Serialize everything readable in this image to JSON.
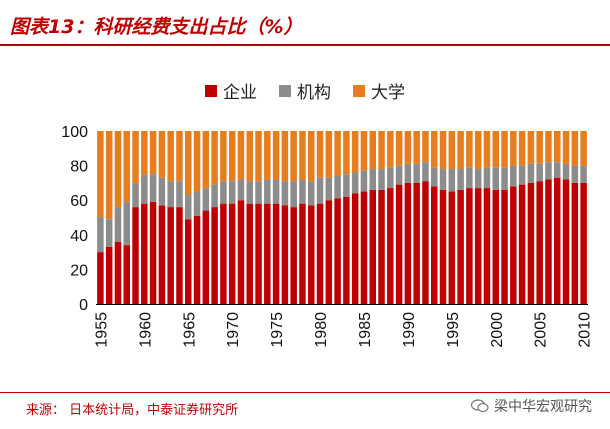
{
  "title": "图表13：科研经费支出占比（%）",
  "source": "来源：   日本统计局，中泰证券研究所",
  "watermark": "梁中华宏观研究",
  "colors": {
    "accent": "#c00000",
    "company": "#c00000",
    "institution": "#8c8c8c",
    "university": "#e87d1e"
  },
  "chart_data": {
    "type": "bar",
    "stacked": true,
    "title": "科研经费支出占比（%）",
    "ylim": [
      0,
      100
    ],
    "yticks": [
      0,
      20,
      40,
      60,
      80,
      100
    ],
    "xtick_labels": [
      "1955",
      "1960",
      "1965",
      "1970",
      "1975",
      "1980",
      "1985",
      "1990",
      "1995",
      "2000",
      "2005",
      "2010"
    ],
    "categories": [
      1955,
      1956,
      1957,
      1958,
      1959,
      1960,
      1961,
      1962,
      1963,
      1964,
      1965,
      1966,
      1967,
      1968,
      1969,
      1970,
      1971,
      1972,
      1973,
      1974,
      1975,
      1976,
      1977,
      1978,
      1979,
      1980,
      1981,
      1982,
      1983,
      1984,
      1985,
      1986,
      1987,
      1988,
      1989,
      1990,
      1991,
      1992,
      1993,
      1994,
      1995,
      1996,
      1997,
      1998,
      1999,
      2000,
      2001,
      2002,
      2003,
      2004,
      2005,
      2006,
      2007,
      2008,
      2009,
      2010
    ],
    "series": [
      {
        "name": "企业",
        "color": "#c00000",
        "values": [
          30,
          33,
          36,
          34,
          56,
          58,
          59,
          57,
          56,
          56,
          49,
          51,
          54,
          56,
          58,
          58,
          60,
          58,
          58,
          58,
          58,
          57,
          56,
          58,
          57,
          58,
          60,
          61,
          62,
          64,
          65,
          66,
          66,
          67,
          69,
          70,
          70,
          71,
          68,
          66,
          65,
          66,
          67,
          67,
          67,
          66,
          66,
          68,
          69,
          70,
          71,
          72,
          73,
          72,
          70,
          70
        ]
      },
      {
        "name": "机构",
        "color": "#8c8c8c",
        "values": [
          20,
          16,
          20,
          25,
          14,
          17,
          16,
          16,
          15,
          15,
          14,
          14,
          13,
          13,
          13,
          13,
          12,
          13,
          13,
          14,
          14,
          14,
          15,
          14,
          14,
          15,
          13,
          13,
          13,
          12,
          12,
          12,
          12,
          12,
          11,
          11,
          11,
          11,
          11,
          12,
          13,
          12,
          12,
          11,
          12,
          13,
          13,
          12,
          11,
          11,
          10,
          10,
          9,
          9,
          10,
          10
        ]
      },
      {
        "name": "大学",
        "color": "#e87d1e",
        "values": [
          50,
          51,
          44,
          41,
          30,
          25,
          25,
          27,
          29,
          29,
          37,
          35,
          33,
          31,
          29,
          29,
          28,
          29,
          29,
          28,
          28,
          29,
          29,
          28,
          29,
          27,
          27,
          26,
          25,
          24,
          23,
          22,
          22,
          21,
          20,
          19,
          19,
          18,
          21,
          22,
          22,
          22,
          21,
          22,
          21,
          21,
          21,
          20,
          20,
          19,
          19,
          18,
          18,
          19,
          20,
          20
        ]
      }
    ]
  }
}
